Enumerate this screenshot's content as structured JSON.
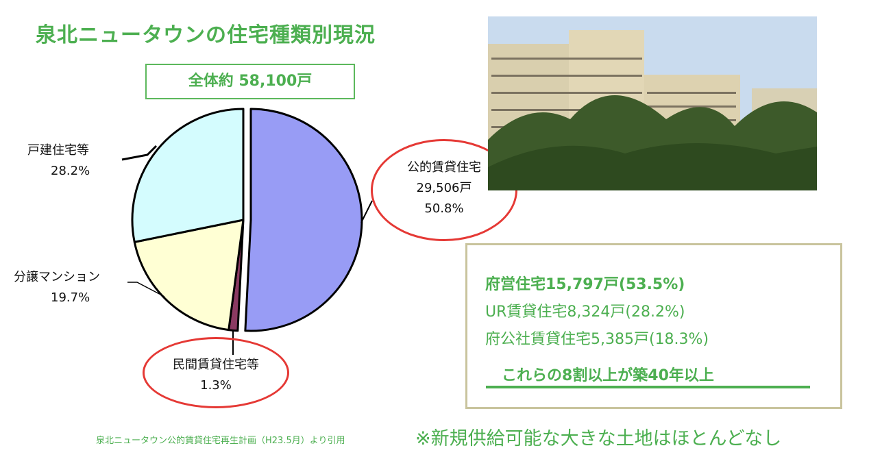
{
  "title": "泉北ニュータウンの住宅種類別現況",
  "total": "全体約 58,100戸",
  "chart_data": {
    "type": "pie",
    "slices": [
      {
        "name": "公的賃貸住宅",
        "count": "29,506戸",
        "percent": 50.8,
        "percent_label": "50.8%",
        "color": "#989cf5"
      },
      {
        "name": "民間賃貸住宅等",
        "percent": 1.3,
        "percent_label": "1.3%",
        "color": "#8b3a62"
      },
      {
        "name": "分譲マンション",
        "percent": 19.7,
        "percent_label": "19.7%",
        "color": "#ffffd4"
      },
      {
        "name": "戸建住宅等",
        "percent": 28.2,
        "percent_label": "28.2%",
        "color": "#d4fcfe"
      }
    ]
  },
  "info": {
    "lines": [
      "府営住宅15,797戸(53.5%)",
      "UR賃貸住宅8,324戸(28.2%)",
      "府公社賃貸住宅5,385戸(18.3%)"
    ],
    "highlight": "これらの8割以上が築40年以上"
  },
  "source": "泉北ニュータウン公的賃貸住宅再生計画（H23.5月）より引用",
  "note": "※新規供給可能な大きな土地はほとんどなし",
  "colors": {
    "accent": "#4caf50",
    "oval": "#e53935",
    "box_border": "#c9c49d"
  }
}
